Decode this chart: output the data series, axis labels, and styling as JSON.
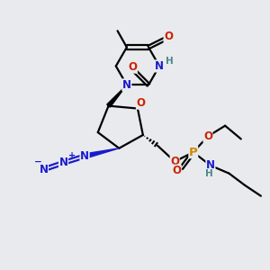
{
  "bg_color": "#e8eaed",
  "bond_color": "#000000",
  "bond_width": 1.6,
  "atom_colors": {
    "N": "#1a1acc",
    "O": "#cc2200",
    "P": "#cc8800",
    "H": "#4a8888"
  },
  "font_size": 8.5,
  "fig_size": [
    3.0,
    3.0
  ],
  "dpi": 100
}
